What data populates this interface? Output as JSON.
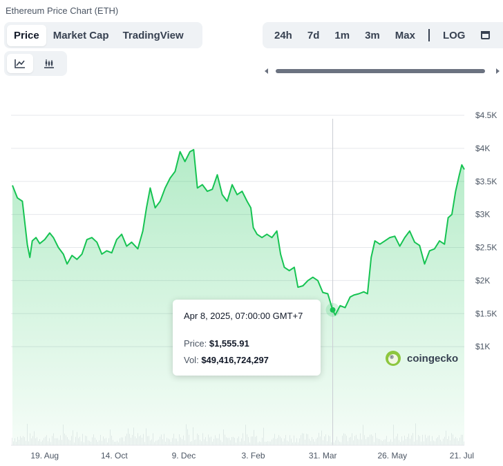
{
  "title": "Ethereum Price Chart (ETH)",
  "tabs": [
    {
      "label": "Price",
      "active": true
    },
    {
      "label": "Market Cap",
      "active": false
    },
    {
      "label": "TradingView",
      "active": false
    }
  ],
  "ranges": [
    {
      "label": "24h"
    },
    {
      "label": "7d"
    },
    {
      "label": "1m"
    },
    {
      "label": "3m"
    },
    {
      "label": "Max"
    }
  ],
  "scale_label": "LOG",
  "chart_types": [
    {
      "icon": "line-chart-icon",
      "active": true
    },
    {
      "icon": "candlestick-chart-icon",
      "active": false
    }
  ],
  "tooltip": {
    "date": "Apr 8, 2025, 07:00:00 GMT+7",
    "price_label": "Price:",
    "price_value": "$1,555.91",
    "vol_label": "Vol:",
    "vol_value": "$49,416,724,297"
  },
  "brand": "coingecko",
  "colors": {
    "line": "#16c352",
    "accent": "#8dc63f",
    "grid": "#e5e7eb"
  },
  "chart_data": {
    "type": "area",
    "title": "",
    "xlabel": "",
    "ylabel": "",
    "ylim": [
      500,
      4500
    ],
    "y_ticks": [
      {
        "value": 4500,
        "label": "$4.5K"
      },
      {
        "value": 4000,
        "label": "$4K"
      },
      {
        "value": 3500,
        "label": "$3.5K"
      },
      {
        "value": 3000,
        "label": "$3K"
      },
      {
        "value": 2500,
        "label": "$2.5K"
      },
      {
        "value": 2000,
        "label": "$2K"
      },
      {
        "value": 1500,
        "label": "$1.5K"
      },
      {
        "value": 1000,
        "label": "$1K"
      }
    ],
    "x_ticks": [
      {
        "date": "2024-08-19",
        "label": "19. Aug"
      },
      {
        "date": "2024-10-14",
        "label": "14. Oct"
      },
      {
        "date": "2024-12-09",
        "label": "9. Dec"
      },
      {
        "date": "2025-02-03",
        "label": "3. Feb"
      },
      {
        "date": "2025-03-31",
        "label": "31. Mar"
      },
      {
        "date": "2025-05-26",
        "label": "26. May"
      },
      {
        "date": "2025-07-21",
        "label": "21. Jul"
      }
    ],
    "x_range": [
      "2024-07-24",
      "2025-07-23"
    ],
    "highlight": {
      "date": "2025-04-08",
      "price": 1555.91,
      "volume": 49416724297
    },
    "series": [
      {
        "points": [
          [
            "2024-07-24",
            3440
          ],
          [
            "2024-07-28",
            3250
          ],
          [
            "2024-08-01",
            3200
          ],
          [
            "2024-08-05",
            2540
          ],
          [
            "2024-08-07",
            2350
          ],
          [
            "2024-08-09",
            2600
          ],
          [
            "2024-08-12",
            2650
          ],
          [
            "2024-08-15",
            2560
          ],
          [
            "2024-08-19",
            2620
          ],
          [
            "2024-08-23",
            2720
          ],
          [
            "2024-08-26",
            2650
          ],
          [
            "2024-08-30",
            2500
          ],
          [
            "2024-09-03",
            2400
          ],
          [
            "2024-09-06",
            2250
          ],
          [
            "2024-09-10",
            2380
          ],
          [
            "2024-09-14",
            2320
          ],
          [
            "2024-09-18",
            2400
          ],
          [
            "2024-09-22",
            2620
          ],
          [
            "2024-09-26",
            2650
          ],
          [
            "2024-09-30",
            2580
          ],
          [
            "2024-10-04",
            2400
          ],
          [
            "2024-10-08",
            2450
          ],
          [
            "2024-10-12",
            2420
          ],
          [
            "2024-10-16",
            2620
          ],
          [
            "2024-10-20",
            2700
          ],
          [
            "2024-10-24",
            2520
          ],
          [
            "2024-10-28",
            2580
          ],
          [
            "2024-11-02",
            2480
          ],
          [
            "2024-11-06",
            2750
          ],
          [
            "2024-11-09",
            3100
          ],
          [
            "2024-11-12",
            3400
          ],
          [
            "2024-11-16",
            3100
          ],
          [
            "2024-11-20",
            3200
          ],
          [
            "2024-11-24",
            3400
          ],
          [
            "2024-11-28",
            3550
          ],
          [
            "2024-12-02",
            3650
          ],
          [
            "2024-12-06",
            3950
          ],
          [
            "2024-12-10",
            3800
          ],
          [
            "2024-12-14",
            3950
          ],
          [
            "2024-12-17",
            3980
          ],
          [
            "2024-12-20",
            3400
          ],
          [
            "2024-12-24",
            3450
          ],
          [
            "2024-12-28",
            3350
          ],
          [
            "2025-01-01",
            3380
          ],
          [
            "2025-01-05",
            3600
          ],
          [
            "2025-01-09",
            3300
          ],
          [
            "2025-01-13",
            3200
          ],
          [
            "2025-01-17",
            3450
          ],
          [
            "2025-01-21",
            3300
          ],
          [
            "2025-01-25",
            3350
          ],
          [
            "2025-01-29",
            3200
          ],
          [
            "2025-02-01",
            3100
          ],
          [
            "2025-02-03",
            2800
          ],
          [
            "2025-02-06",
            2700
          ],
          [
            "2025-02-10",
            2650
          ],
          [
            "2025-02-14",
            2700
          ],
          [
            "2025-02-18",
            2650
          ],
          [
            "2025-02-22",
            2750
          ],
          [
            "2025-02-25",
            2400
          ],
          [
            "2025-02-28",
            2200
          ],
          [
            "2025-03-04",
            2150
          ],
          [
            "2025-03-08",
            2200
          ],
          [
            "2025-03-11",
            1900
          ],
          [
            "2025-03-15",
            1920
          ],
          [
            "2025-03-19",
            2000
          ],
          [
            "2025-03-23",
            2050
          ],
          [
            "2025-03-27",
            2000
          ],
          [
            "2025-03-31",
            1820
          ],
          [
            "2025-04-04",
            1800
          ],
          [
            "2025-04-08",
            1555.91
          ],
          [
            "2025-04-10",
            1480
          ],
          [
            "2025-04-14",
            1620
          ],
          [
            "2025-04-18",
            1590
          ],
          [
            "2025-04-22",
            1750
          ],
          [
            "2025-04-25",
            1780
          ],
          [
            "2025-04-29",
            1800
          ],
          [
            "2025-05-03",
            1830
          ],
          [
            "2025-05-06",
            1800
          ],
          [
            "2025-05-09",
            2350
          ],
          [
            "2025-05-12",
            2600
          ],
          [
            "2025-05-16",
            2550
          ],
          [
            "2025-05-20",
            2600
          ],
          [
            "2025-05-24",
            2650
          ],
          [
            "2025-05-28",
            2670
          ],
          [
            "2025-06-01",
            2520
          ],
          [
            "2025-06-05",
            2650
          ],
          [
            "2025-06-09",
            2750
          ],
          [
            "2025-06-13",
            2580
          ],
          [
            "2025-06-17",
            2530
          ],
          [
            "2025-06-21",
            2250
          ],
          [
            "2025-06-25",
            2450
          ],
          [
            "2025-06-29",
            2480
          ],
          [
            "2025-07-03",
            2600
          ],
          [
            "2025-07-07",
            2550
          ],
          [
            "2025-07-10",
            2950
          ],
          [
            "2025-07-13",
            3000
          ],
          [
            "2025-07-16",
            3350
          ],
          [
            "2025-07-19",
            3600
          ],
          [
            "2025-07-21",
            3750
          ],
          [
            "2025-07-23",
            3680
          ]
        ]
      }
    ]
  }
}
